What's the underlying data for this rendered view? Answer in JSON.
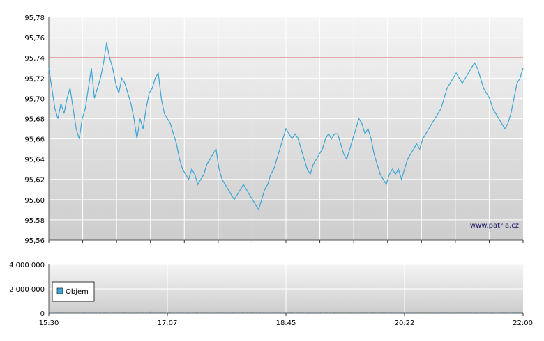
{
  "chart_data": [
    {
      "type": "line",
      "title": "",
      "xlabel": "",
      "ylabel": "",
      "ylim": [
        95.56,
        95.78
      ],
      "yticks": [
        "95,78",
        "95,76",
        "95,74",
        "95,72",
        "95,70",
        "95,68",
        "95,66",
        "95,64",
        "95,62",
        "95,60",
        "95,58",
        "95,56"
      ],
      "reference_line": {
        "value": 95.74,
        "color": "#d03030"
      },
      "series": [
        {
          "color": "#3aa6d6",
          "values": [
            95.73,
            95.71,
            95.69,
            95.68,
            95.695,
            95.685,
            95.7,
            95.71,
            95.69,
            95.67,
            95.66,
            95.68,
            95.69,
            95.71,
            95.73,
            95.7,
            95.71,
            95.72,
            95.735,
            95.755,
            95.74,
            95.73,
            95.715,
            95.705,
            95.72,
            95.715,
            95.705,
            95.695,
            95.68,
            95.66,
            95.68,
            95.67,
            95.69,
            95.705,
            95.71,
            95.72,
            95.725,
            95.7,
            95.685,
            95.68,
            95.675,
            95.665,
            95.655,
            95.64,
            95.63,
            95.625,
            95.62,
            95.63,
            95.625,
            95.615,
            95.62,
            95.625,
            95.635,
            95.64,
            95.645,
            95.65,
            95.63,
            95.62,
            95.615,
            95.61,
            95.605,
            95.6,
            95.605,
            95.61,
            95.615,
            95.61,
            95.605,
            95.6,
            95.595,
            95.59,
            95.6,
            95.61,
            95.615,
            95.625,
            95.63,
            95.64,
            95.65,
            95.66,
            95.67,
            95.665,
            95.66,
            95.665,
            95.66,
            95.65,
            95.64,
            95.63,
            95.625,
            95.635,
            95.64,
            95.645,
            95.65,
            95.66,
            95.665,
            95.66,
            95.665,
            95.665,
            95.655,
            95.645,
            95.64,
            95.65,
            95.66,
            95.67,
            95.68,
            95.675,
            95.665,
            95.67,
            95.66,
            95.645,
            95.635,
            95.625,
            95.62,
            95.615,
            95.625,
            95.63,
            95.625,
            95.63,
            95.62,
            95.63,
            95.64,
            95.645,
            95.65,
            95.655,
            95.65,
            95.66,
            95.665,
            95.67,
            95.675,
            95.68,
            95.685,
            95.69,
            95.7,
            95.71,
            95.715,
            95.72,
            95.725,
            95.72,
            95.715,
            95.72,
            95.725,
            95.73,
            95.735,
            95.73,
            95.72,
            95.71,
            95.705,
            95.7,
            95.69,
            95.685,
            95.68,
            95.675,
            95.67,
            95.675,
            95.685,
            95.7,
            95.715,
            95.72,
            95.73
          ]
        }
      ]
    },
    {
      "type": "bar",
      "title": "",
      "xlabel": "",
      "ylabel": "",
      "ylim": [
        0,
        4000000
      ],
      "yticks": [
        "4 000 000",
        "2 000 000",
        "0"
      ],
      "xticks": [
        "15:30",
        "17:07",
        "18:45",
        "20:22",
        "22:00"
      ],
      "series": [
        {
          "name": "Objem",
          "color": "#3aa6d6",
          "values": [
            60000,
            20000,
            40000,
            25000,
            80000,
            15000,
            30000,
            50000,
            20000,
            45000,
            30000,
            60000,
            20000,
            35000,
            25000,
            40000,
            30000,
            20000,
            50000,
            25000,
            30000,
            40000,
            20000,
            35000,
            45000,
            25000,
            30000,
            20000,
            40000,
            30000,
            25000,
            35000,
            20000,
            300000,
            40000,
            30000,
            25000,
            35000,
            20000,
            45000,
            30000,
            25000,
            40000,
            35000,
            20000,
            30000,
            25000,
            40000,
            35000,
            30000,
            20000,
            45000,
            30000,
            25000,
            35000,
            40000,
            20000,
            30000,
            25000,
            35000,
            45000,
            30000,
            20000,
            40000,
            30000,
            25000,
            35000,
            20000,
            30000,
            40000,
            25000,
            35000,
            30000,
            20000,
            40000,
            30000,
            25000,
            35000,
            20000,
            45000,
            30000,
            25000,
            40000,
            30000,
            20000,
            35000,
            30000,
            25000,
            40000,
            30000,
            50000,
            35000,
            25000,
            40000,
            30000,
            20000,
            35000,
            30000,
            45000,
            25000,
            30000,
            40000,
            35000,
            20000,
            30000,
            25000,
            40000,
            35000,
            30000,
            50000,
            25000,
            40000,
            30000,
            35000,
            20000,
            45000,
            30000,
            25000,
            40000,
            35000,
            30000,
            20000,
            40000,
            30000,
            25000,
            35000,
            40000,
            30000,
            20000,
            45000,
            35000,
            25000,
            30000,
            40000,
            35000,
            30000,
            25000,
            40000,
            30000,
            35000,
            20000,
            45000,
            30000,
            25000,
            40000,
            35000,
            30000,
            50000,
            25000,
            40000,
            30000,
            35000,
            60000,
            70000,
            80000
          ]
        }
      ],
      "legend": {
        "label": "Objem",
        "placement": "left"
      }
    }
  ],
  "watermark": "www.patria.cz"
}
